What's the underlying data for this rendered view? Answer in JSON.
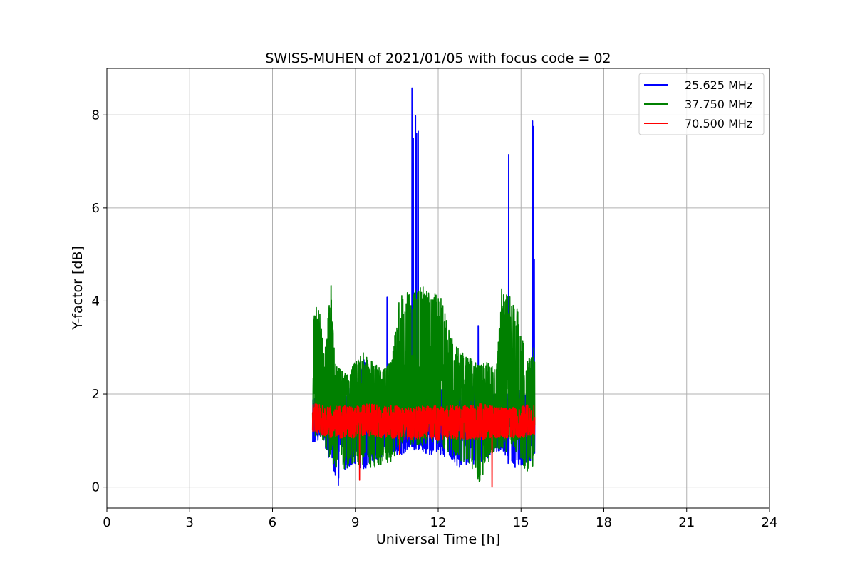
{
  "chart_data": {
    "type": "line",
    "title": "SWISS-MUHEN of 2021/01/05 with focus code = 02",
    "xlabel": "Universal Time [h]",
    "ylabel": "Y-factor [dB]",
    "xlim": [
      0,
      24
    ],
    "ylim": [
      -0.45,
      9.0
    ],
    "xticks": [
      0,
      3,
      6,
      9,
      12,
      15,
      18,
      21,
      24
    ],
    "yticks": [
      0,
      2,
      4,
      6,
      8
    ],
    "grid": true,
    "legend_position": "top-right",
    "series": [
      {
        "name": "25.625 MHz",
        "color": "#0000ff",
        "x_range": [
          7.45,
          15.5
        ],
        "baseline": 1.4,
        "envelope": [
          [
            7.45,
            0.95,
            1.9
          ],
          [
            7.8,
            1.0,
            1.9
          ],
          [
            8.2,
            0.35,
            1.9
          ],
          [
            8.4,
            0.0,
            2.0
          ],
          [
            8.7,
            0.4,
            2.1
          ],
          [
            9.0,
            0.5,
            2.2
          ],
          [
            9.3,
            0.35,
            2.8
          ],
          [
            9.6,
            0.5,
            2.3
          ],
          [
            9.9,
            0.6,
            2.2
          ],
          [
            10.2,
            0.7,
            2.3
          ],
          [
            10.5,
            0.7,
            2.0
          ],
          [
            10.8,
            0.7,
            2.2
          ],
          [
            11.0,
            0.8,
            2.4
          ],
          [
            11.3,
            0.8,
            2.3
          ],
          [
            11.6,
            0.7,
            2.2
          ],
          [
            12.0,
            0.7,
            2.1
          ],
          [
            12.4,
            0.6,
            2.1
          ],
          [
            12.8,
            0.4,
            2.0
          ],
          [
            13.2,
            0.5,
            2.2
          ],
          [
            13.5,
            0.4,
            2.1
          ],
          [
            13.9,
            0.7,
            2.0
          ],
          [
            14.3,
            0.8,
            2.0
          ],
          [
            14.6,
            0.4,
            2.0
          ],
          [
            14.9,
            0.4,
            2.1
          ],
          [
            15.2,
            0.5,
            2.1
          ],
          [
            15.5,
            0.6,
            2.2
          ]
        ],
        "spikes": [
          [
            8.3,
            2.3
          ],
          [
            10.15,
            4.08
          ],
          [
            11.05,
            8.58
          ],
          [
            11.1,
            7.5
          ],
          [
            11.18,
            7.98
          ],
          [
            11.22,
            7.6
          ],
          [
            11.28,
            7.65
          ],
          [
            13.45,
            3.47
          ],
          [
            14.55,
            7.15
          ],
          [
            15.42,
            7.87
          ],
          [
            15.45,
            7.75
          ],
          [
            15.48,
            4.9
          ]
        ]
      },
      {
        "name": "37.750 MHz",
        "color": "#008000",
        "x_range": [
          7.45,
          15.5
        ],
        "baseline": 2.0,
        "envelope": [
          [
            7.45,
            1.2,
            3.9
          ],
          [
            7.65,
            1.0,
            4.0
          ],
          [
            7.9,
            0.9,
            2.9
          ],
          [
            8.1,
            0.5,
            4.33
          ],
          [
            8.3,
            0.4,
            2.6
          ],
          [
            8.7,
            0.4,
            2.4
          ],
          [
            9.0,
            0.5,
            2.7
          ],
          [
            9.3,
            0.4,
            2.9
          ],
          [
            9.6,
            0.4,
            2.7
          ],
          [
            10.0,
            0.5,
            2.5
          ],
          [
            10.3,
            0.5,
            2.7
          ],
          [
            10.6,
            0.8,
            4.1
          ],
          [
            10.9,
            0.9,
            4.2
          ],
          [
            11.2,
            0.9,
            4.3
          ],
          [
            11.5,
            0.9,
            4.3
          ],
          [
            11.8,
            0.9,
            4.2
          ],
          [
            12.1,
            0.9,
            4.1
          ],
          [
            12.4,
            0.7,
            3.4
          ],
          [
            12.7,
            0.5,
            3.0
          ],
          [
            13.0,
            0.5,
            2.9
          ],
          [
            13.3,
            0.3,
            2.7
          ],
          [
            13.5,
            0.0,
            2.6
          ],
          [
            13.8,
            0.5,
            2.7
          ],
          [
            14.1,
            0.8,
            2.5
          ],
          [
            14.3,
            0.8,
            4.26
          ],
          [
            14.6,
            0.7,
            4.1
          ],
          [
            14.9,
            0.7,
            3.8
          ],
          [
            15.2,
            0.3,
            2.7
          ],
          [
            15.5,
            0.4,
            3.05
          ]
        ],
        "spikes": [
          [
            8.12,
            4.33
          ],
          [
            11.45,
            4.3
          ],
          [
            14.3,
            4.26
          ]
        ]
      },
      {
        "name": "70.500 MHz",
        "color": "#ff0000",
        "x_range": [
          7.45,
          15.5
        ],
        "baseline": 1.4,
        "envelope": [
          [
            7.45,
            1.15,
            1.8
          ],
          [
            8.0,
            1.05,
            1.75
          ],
          [
            8.5,
            1.05,
            1.75
          ],
          [
            9.0,
            1.05,
            1.75
          ],
          [
            9.5,
            1.1,
            1.8
          ],
          [
            10.0,
            1.05,
            1.75
          ],
          [
            10.5,
            1.05,
            1.75
          ],
          [
            11.0,
            1.0,
            1.7
          ],
          [
            11.5,
            1.05,
            1.75
          ],
          [
            12.0,
            1.0,
            1.75
          ],
          [
            12.5,
            1.05,
            1.75
          ],
          [
            13.0,
            1.0,
            1.75
          ],
          [
            13.5,
            1.0,
            1.8
          ],
          [
            14.0,
            1.05,
            1.75
          ],
          [
            14.5,
            1.05,
            1.7
          ],
          [
            15.0,
            1.05,
            1.75
          ],
          [
            15.5,
            1.1,
            1.8
          ]
        ],
        "dips": [
          [
            9.15,
            0.15
          ],
          [
            10.6,
            0.7
          ],
          [
            13.95,
            0.0
          ]
        ]
      }
    ]
  }
}
